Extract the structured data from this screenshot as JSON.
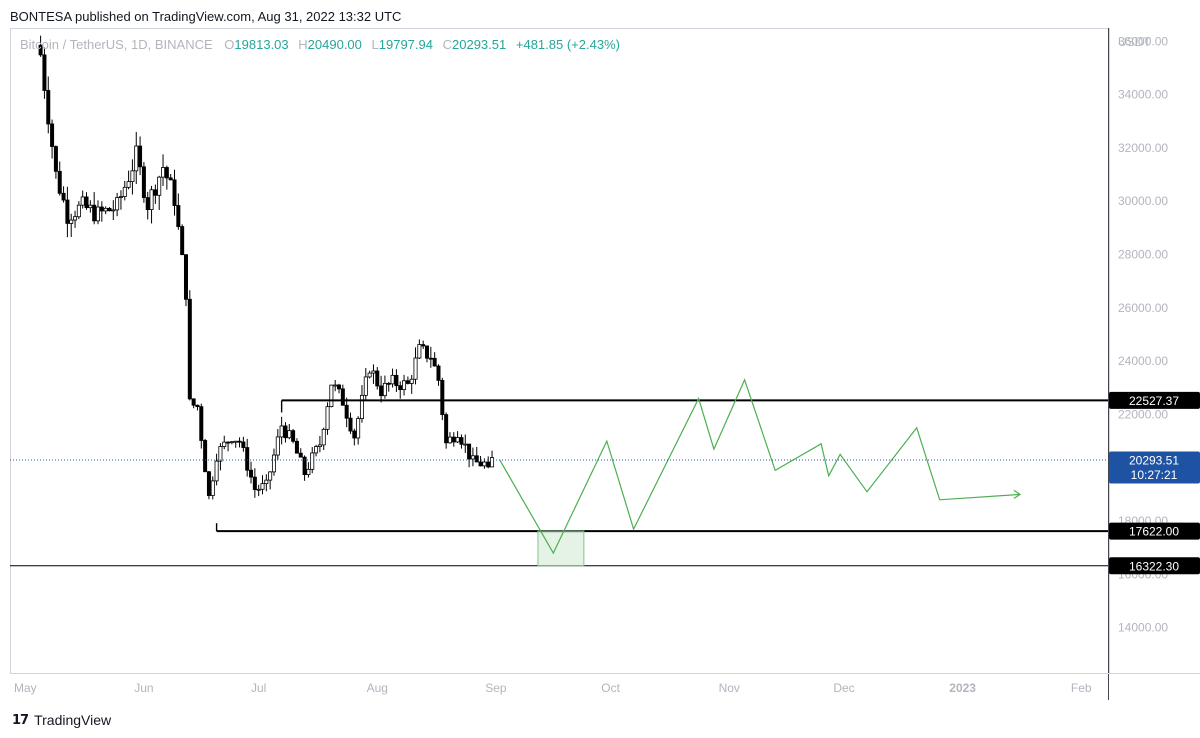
{
  "header": {
    "published": "BONTESA published on TradingView.com, Aug 31, 2022 13:32 UTC"
  },
  "footer": {
    "brand": "TradingView"
  },
  "colors": {
    "background": "#ffffff",
    "candle_up": "#ffffff",
    "candle_down": "#000000",
    "drawing": "#4caf50",
    "current_price": "#1e53a4",
    "ohlc": "#26a69a",
    "axis_text": "#b2b5be"
  },
  "chart_data": {
    "type": "candlestick",
    "symbol": "Bitcoin / TetherUS, 1D, BINANCE",
    "ohlc_labels": {
      "open_label": "O",
      "open": "19813.03",
      "high_label": "H",
      "high": "20490.00",
      "low_label": "L",
      "low": "19797.94",
      "close_label": "C",
      "close": "20293.51",
      "change": "+481.85 (+2.43%)"
    },
    "currency": "USDT",
    "y_ticks": [
      14000,
      16000,
      18000,
      20000,
      22000,
      24000,
      26000,
      28000,
      30000,
      32000,
      34000,
      36000
    ],
    "y_tick_labels": [
      "14000.00",
      "16000.00",
      "18000.00",
      "20000.00",
      "22000.00",
      "24000.00",
      "26000.00",
      "28000.00",
      "30000.00",
      "32000.00",
      "34000.00",
      "36000.00"
    ],
    "ylim": [
      12300,
      36500
    ],
    "x_ticks": [
      "2022-05-01",
      "2022-06-01",
      "2022-07-01",
      "2022-08-01",
      "2022-09-01",
      "2022-10-01",
      "2022-11-01",
      "2022-12-01",
      "2023-01-01",
      "2023-02-01"
    ],
    "x_tick_labels": [
      "May",
      "Jun",
      "Jul",
      "Aug",
      "Sep",
      "Oct",
      "Nov",
      "Dec",
      "2023",
      "Feb"
    ],
    "xlim": [
      "2022-04-27",
      "2023-02-08"
    ],
    "price_key": [
      [
        "2022-05-05",
        35500
      ],
      [
        "2022-05-09",
        31000
      ],
      [
        "2022-05-12",
        29500
      ],
      [
        "2022-05-16",
        29800
      ],
      [
        "2022-05-20",
        29500
      ],
      [
        "2022-05-25",
        29800
      ],
      [
        "2022-05-30",
        31700
      ],
      [
        "2022-06-02",
        29900
      ],
      [
        "2022-06-06",
        31300
      ],
      [
        "2022-06-09",
        30100
      ],
      [
        "2022-06-12",
        26600
      ],
      [
        "2022-06-13",
        22400
      ],
      [
        "2022-06-15",
        22300
      ],
      [
        "2022-06-18",
        18900
      ],
      [
        "2022-06-20",
        20500
      ],
      [
        "2022-06-24",
        21200
      ],
      [
        "2022-06-26",
        21000
      ],
      [
        "2022-06-30",
        19200
      ],
      [
        "2022-07-03",
        19300
      ],
      [
        "2022-07-07",
        21600
      ],
      [
        "2022-07-10",
        20900
      ],
      [
        "2022-07-13",
        19800
      ],
      [
        "2022-07-17",
        20900
      ],
      [
        "2022-07-20",
        23200
      ],
      [
        "2022-07-23",
        22500
      ],
      [
        "2022-07-26",
        21200
      ],
      [
        "2022-07-30",
        23800
      ],
      [
        "2022-08-02",
        22900
      ],
      [
        "2022-08-05",
        23200
      ],
      [
        "2022-08-09",
        23100
      ],
      [
        "2022-08-12",
        24400
      ],
      [
        "2022-08-15",
        24200
      ],
      [
        "2022-08-17",
        23300
      ],
      [
        "2022-08-19",
        20900
      ],
      [
        "2022-08-22",
        21400
      ],
      [
        "2022-08-26",
        20200
      ],
      [
        "2022-08-29",
        20150
      ],
      [
        "2022-08-30",
        19810
      ],
      [
        "2022-08-31",
        20290
      ]
    ],
    "horizontal_levels": [
      {
        "start": "2022-07-07",
        "value": 22527.37,
        "label": "22527.37"
      },
      {
        "start": "2022-06-20",
        "value": 17622.0,
        "label": "17622.00"
      },
      {
        "start": "2022-04-27",
        "value": 16322.3,
        "label": "16322.30"
      }
    ],
    "current_price": {
      "value": 20293.51,
      "label": "20293.51",
      "countdown": "10:27:21"
    },
    "projection_path": [
      [
        "2022-09-02",
        20300
      ],
      [
        "2022-09-16",
        16800
      ],
      [
        "2022-09-30",
        21000
      ],
      [
        "2022-10-07",
        17700
      ],
      [
        "2022-10-24",
        22600
      ],
      [
        "2022-10-28",
        20700
      ],
      [
        "2022-11-05",
        23300
      ],
      [
        "2022-11-13",
        19900
      ],
      [
        "2022-11-25",
        20900
      ],
      [
        "2022-11-27",
        19700
      ],
      [
        "2022-11-30",
        20500
      ],
      [
        "2022-12-07",
        19100
      ],
      [
        "2022-12-20",
        21500
      ],
      [
        "2022-12-26",
        18800
      ],
      [
        "2023-01-16",
        19000
      ]
    ],
    "projection_box": {
      "x0": "2022-09-12",
      "x1": "2022-09-24",
      "y0": 16322.3,
      "y1": 17622.0
    }
  }
}
